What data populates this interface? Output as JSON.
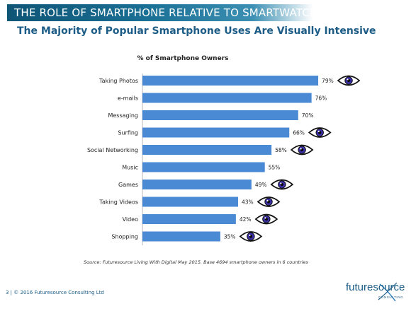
{
  "header": {
    "title": "THE ROLE OF SMARTPHONE RELATIVE TO SMARTWATCH",
    "subtitle": "The Majority of Popular Smartphone Uses Are Visually Intensive"
  },
  "chart_data": {
    "type": "bar",
    "orientation": "horizontal",
    "title": "% of Smartphone Owners",
    "categories": [
      "Taking Photos",
      "e-mails",
      "Messaging",
      "Surfing",
      "Social Networking",
      "Music",
      "Games",
      "Taking Videos",
      "Video",
      "Shopping"
    ],
    "values": [
      79,
      76,
      70,
      66,
      58,
      55,
      49,
      43,
      42,
      35
    ],
    "value_labels": [
      "79%",
      "76%",
      "70%",
      "66%",
      "58%",
      "55%",
      "49%",
      "43%",
      "42%",
      "35%"
    ],
    "visually_intensive": [
      true,
      false,
      false,
      true,
      true,
      false,
      true,
      true,
      true,
      true
    ],
    "xlim": [
      0,
      100
    ],
    "bar_color": "#4a8ad4",
    "marker_icon": "eye-icon",
    "grid": false,
    "legend": "none"
  },
  "source": "Source: Futuresource Living With Digital May 2015. Base 4694 smartphone owners in 6 countries",
  "footer": {
    "text": "3  |  © 2016 Futuresource Consulting Ltd"
  },
  "logo": {
    "text": "futuresource",
    "sub": "CONSULTING"
  },
  "colors": {
    "title_bar": "#1a6f94",
    "subtitle": "#1c5c86",
    "bar": "#4a8ad4",
    "eye_iris": "#3a2fa8"
  }
}
